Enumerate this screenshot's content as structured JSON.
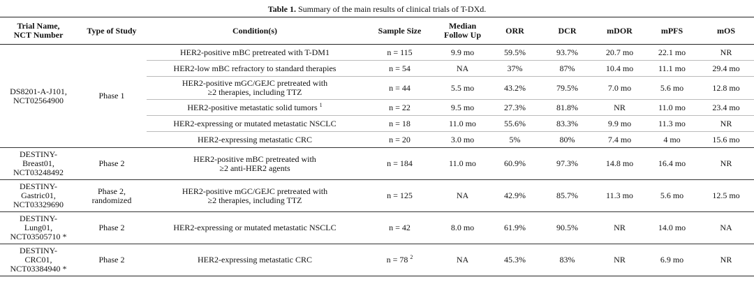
{
  "caption": {
    "label": "Table 1.",
    "text": " Summary of the main results of clinical trials of T-DXd."
  },
  "table": {
    "header": [
      "Trial Name,\nNCT Number",
      "Type of Study",
      "Condition(s)",
      "Sample Size",
      "Median\nFollow Up",
      "ORR",
      "DCR",
      "mDOR",
      "mPFS",
      "mOS"
    ],
    "groups": [
      {
        "trial": "DS8201-A-J101,\nNCT02564900",
        "study": "Phase 1",
        "rows": [
          {
            "condition": "HER2-positive mBC pretreated with T-DM1",
            "sample": "n = 115",
            "follow_up": "9.9 mo",
            "orr": "59.5%",
            "dcr": "93.7%",
            "mdor": "20.7 mo",
            "mpfs": "22.1 mo",
            "mos": "NR"
          },
          {
            "condition": "HER2-low mBC refractory to standard therapies",
            "sample": "n = 54",
            "follow_up": "NA",
            "orr": "37%",
            "dcr": "87%",
            "mdor": "10.4 mo",
            "mpfs": "11.1 mo",
            "mos": "29.4 mo"
          },
          {
            "condition": "HER2-positive mGC/GEJC pretreated with\n≥2 therapies, including TTZ",
            "sample": "n = 44",
            "follow_up": "5.5 mo",
            "orr": "43.2%",
            "dcr": "79.5%",
            "mdor": "7.0 mo",
            "mpfs": "5.6 mo",
            "mos": "12.8 mo"
          },
          {
            "condition": "HER2-positive metastatic solid tumors ",
            "condition_note": "1",
            "sample": "n = 22",
            "follow_up": "9.5 mo",
            "orr": "27.3%",
            "dcr": "81.8%",
            "mdor": "NR",
            "mpfs": "11.0 mo",
            "mos": "23.4 mo"
          },
          {
            "condition": "HER2-expressing or mutated metastatic NSCLC",
            "sample": "n = 18",
            "follow_up": "11.0 mo",
            "orr": "55.6%",
            "dcr": "83.3%",
            "mdor": "9.9 mo",
            "mpfs": "11.3 mo",
            "mos": "NR"
          },
          {
            "condition": "HER2-expressing metastatic CRC",
            "sample": "n = 20",
            "follow_up": "3.0 mo",
            "orr": "5%",
            "dcr": "80%",
            "mdor": "7.4 mo",
            "mpfs": "4 mo",
            "mos": "15.6 mo"
          }
        ]
      },
      {
        "trial": "DESTINY-\nBreast01,\nNCT03248492",
        "study": "Phase 2",
        "rows": [
          {
            "condition": "HER2-positive mBC pretreated with\n≥2 anti-HER2 agents",
            "sample": "n = 184",
            "follow_up": "11.0 mo",
            "orr": "60.9%",
            "dcr": "97.3%",
            "mdor": "14.8 mo",
            "mpfs": "16.4 mo",
            "mos": "NR"
          }
        ]
      },
      {
        "trial": "DESTINY-\nGastric01,\nNCT03329690",
        "study": "Phase 2,\nrandomized",
        "rows": [
          {
            "condition": "HER2-positive mGC/GEJC pretreated with\n≥2 therapies, including TTZ",
            "sample": "n = 125",
            "follow_up": "NA",
            "orr": "42.9%",
            "dcr": "85.7%",
            "mdor": "11.3 mo",
            "mpfs": "5.6 mo",
            "mos": "12.5 mo"
          }
        ]
      },
      {
        "trial": "DESTINY-\nLung01,\nNCT03505710 *",
        "study": "Phase 2",
        "rows": [
          {
            "condition": "HER2-expressing or mutated metastatic NSCLC",
            "sample": "n = 42",
            "follow_up": "8.0 mo",
            "orr": "61.9%",
            "dcr": "90.5%",
            "mdor": "NR",
            "mpfs": "14.0 mo",
            "mos": "NA"
          }
        ]
      },
      {
        "trial": "DESTINY-\nCRC01,\nNCT03384940 *",
        "study": "Phase 2",
        "rows": [
          {
            "condition": "HER2-expressing metastatic CRC",
            "sample": "n = 78 ",
            "sample_note": "2",
            "follow_up": "NA",
            "orr": "45.3%",
            "dcr": "83%",
            "mdor": "NR",
            "mpfs": "6.9 mo",
            "mos": "NR"
          }
        ]
      }
    ]
  }
}
